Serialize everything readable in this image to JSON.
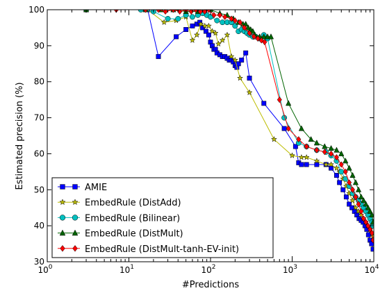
{
  "chart_data": {
    "type": "line",
    "title": "",
    "xlabel": "#Predictions",
    "ylabel": "Estimated precision (%)",
    "xscale": "log",
    "xlim": [
      1,
      10000
    ],
    "ylim": [
      30,
      100
    ],
    "x_ticks": [
      {
        "value": 1,
        "base": "10",
        "exp": "0"
      },
      {
        "value": 10,
        "base": "10",
        "exp": "1"
      },
      {
        "value": 100,
        "base": "10",
        "exp": "2"
      },
      {
        "value": 1000,
        "base": "10",
        "exp": "3"
      },
      {
        "value": 10000,
        "base": "10",
        "exp": "4"
      }
    ],
    "y_ticks": [
      "30",
      "40",
      "50",
      "60",
      "70",
      "80",
      "90",
      "100"
    ],
    "grid": false,
    "legend_position": "lower-left",
    "series": [
      {
        "name": "AMIE",
        "color": "#0000ff",
        "marker": "square",
        "x": [
          3,
          17,
          23,
          38,
          50,
          60,
          68,
          74,
          80,
          88,
          95,
          100,
          105,
          110,
          115,
          120,
          130,
          140,
          150,
          160,
          170,
          180,
          190,
          200,
          210,
          220,
          240,
          270,
          300,
          450,
          800,
          1100,
          1200,
          1300,
          1500,
          2000,
          2600,
          3000,
          3500,
          3800,
          4200,
          4600,
          5000,
          5400,
          5800,
          6200,
          6600,
          7000,
          7400,
          7800,
          8200,
          8600,
          9000,
          9400,
          9800
        ],
        "y": [
          100,
          100,
          87,
          92.5,
          94.5,
          95.5,
          96,
          96.5,
          95,
          94,
          93,
          91,
          90,
          89,
          89,
          88,
          87.5,
          87,
          87,
          86.5,
          86,
          86,
          85.5,
          84.5,
          84,
          85,
          86,
          88,
          81,
          74,
          67,
          62,
          57.5,
          57,
          57,
          57,
          57,
          56,
          54,
          52,
          50,
          48,
          46,
          45,
          44,
          43,
          42,
          41.5,
          41,
          40,
          39,
          37.5,
          36,
          35,
          33.5
        ]
      },
      {
        "name": "EmbedRule (DistAdd)",
        "color": "#bcbc00",
        "marker": "star",
        "x": [
          3,
          17,
          27,
          38,
          50,
          60,
          68,
          76,
          85,
          95,
          105,
          115,
          125,
          140,
          160,
          180,
          200,
          230,
          300,
          600,
          1000,
          1300,
          1500,
          2000,
          2600,
          3000,
          3500,
          3800,
          4200,
          4600,
          5000,
          5500,
          6000,
          6500,
          7000,
          7500,
          8000,
          8500,
          9000,
          9500,
          9800
        ],
        "y": [
          100,
          100,
          96.5,
          97,
          98,
          91.5,
          93,
          96,
          95.5,
          95.5,
          94,
          93.5,
          90.5,
          91.5,
          93,
          87,
          86,
          81,
          77,
          64,
          59.5,
          59,
          59,
          58,
          57,
          57,
          56,
          55,
          53,
          51,
          49,
          47,
          45,
          44,
          43,
          42,
          41,
          40,
          39,
          38,
          37
        ]
      },
      {
        "name": "EmbedRule (Bilinear)",
        "color": "#00c0c0",
        "marker": "circle",
        "x": [
          3,
          14,
          20,
          30,
          40,
          50,
          60,
          70,
          80,
          90,
          100,
          120,
          140,
          160,
          180,
          200,
          220,
          240,
          260,
          280,
          300,
          330,
          360,
          400,
          450,
          500,
          800,
          1200,
          1500,
          2000,
          2600,
          3000,
          3500,
          4000,
          4500,
          5000,
          5500,
          6000,
          6500,
          7000,
          7500,
          8000,
          8500,
          9000,
          9500,
          9800
        ],
        "y": [
          100,
          100,
          99.5,
          97.5,
          97.5,
          98.5,
          98,
          98.5,
          99,
          98.5,
          98,
          97,
          96.5,
          96.5,
          96.5,
          95.5,
          94,
          94.5,
          94,
          93.5,
          93,
          92.5,
          92.5,
          92,
          93,
          92,
          70,
          63,
          62,
          61,
          60.5,
          59.5,
          58,
          55,
          53,
          51,
          49,
          48,
          47,
          46,
          45,
          44,
          43,
          42,
          41,
          40
        ]
      },
      {
        "name": "EmbedRule (DistMult)",
        "color": "#006400",
        "marker": "triangle",
        "x": [
          3,
          16,
          25,
          35,
          50,
          70,
          100,
          130,
          160,
          190,
          220,
          250,
          270,
          290,
          310,
          330,
          350,
          400,
          450,
          500,
          550,
          900,
          1300,
          1700,
          2000,
          2500,
          3000,
          3500,
          4000,
          4500,
          5000,
          5500,
          6000,
          6500,
          7000,
          7500,
          8000,
          8500,
          9000,
          9500,
          9800
        ],
        "y": [
          100,
          100,
          100,
          100,
          99.5,
          99.5,
          100,
          99,
          98.5,
          97.5,
          96.5,
          96,
          96,
          95,
          94.5,
          94,
          93,
          92.5,
          92.5,
          92.5,
          92.5,
          74,
          67,
          64,
          63,
          62,
          61.5,
          61,
          60,
          58,
          56,
          54,
          52,
          50,
          48,
          47,
          46,
          45,
          44,
          43,
          41
        ]
      },
      {
        "name": "EmbedRule (DistMult-tanh-EV-init)",
        "color": "#ff0000",
        "marker": "diamond",
        "x": [
          7,
          16,
          23,
          28,
          35,
          42,
          50,
          58,
          66,
          75,
          85,
          95,
          110,
          130,
          150,
          180,
          200,
          230,
          260,
          300,
          340,
          380,
          420,
          460,
          700,
          900,
          1200,
          1500,
          2000,
          2500,
          3000,
          3500,
          4000,
          4500,
          5000,
          5500,
          6000,
          6500,
          7000,
          7500,
          8000,
          8500,
          9000,
          9500,
          9800
        ],
        "y": [
          100,
          100,
          100,
          99.5,
          100,
          99.5,
          100,
          99.5,
          100,
          99.5,
          99.5,
          100,
          98.5,
          98.5,
          98,
          97.5,
          97,
          96.5,
          95,
          93.5,
          92.5,
          92,
          91.5,
          91,
          75,
          67,
          64,
          62,
          61,
          60.5,
          60,
          59,
          57,
          55,
          52,
          50,
          48,
          46,
          44,
          42,
          41,
          40,
          39,
          38,
          36
        ]
      }
    ]
  }
}
